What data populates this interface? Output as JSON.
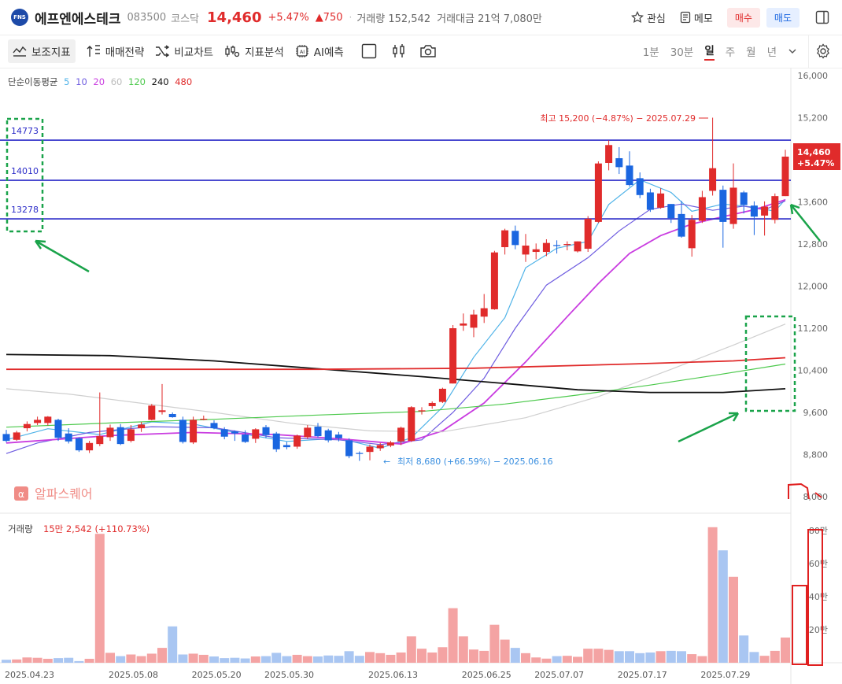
{
  "header": {
    "logo_text": "FNS",
    "stock_name": "에프엔에스테크",
    "code": "083500",
    "market": "코스닥",
    "price": "14,460",
    "change_pct": "+5.47%",
    "change_abs": "▲750",
    "sep": "·",
    "volume_label": "거래량 152,542",
    "amount_label": "거래대금 21억 7,080만",
    "watch_label": "관심",
    "memo_label": "메모",
    "buy_label": "매수",
    "sell_label": "매도"
  },
  "toolbar": {
    "indicators": "보조지표",
    "strategy": "매매전략",
    "compare": "비교차트",
    "analysis": "지표분석",
    "ai": "AI예측",
    "periods": [
      "1분",
      "30분",
      "일",
      "주",
      "월",
      "년"
    ],
    "active_period": "일"
  },
  "ma_legend": {
    "label": "단순이동평균",
    "items": [
      {
        "text": "5",
        "color": "#4fb3e8"
      },
      {
        "text": "10",
        "color": "#6e5ce0"
      },
      {
        "text": "20",
        "color": "#c93ce0"
      },
      {
        "text": "60",
        "color": "#cfcfcf"
      },
      {
        "text": "120",
        "color": "#4cc94c"
      },
      {
        "text": "240",
        "color": "#111111"
      },
      {
        "text": "480",
        "color": "#e02b2b"
      }
    ]
  },
  "watermark": "알파스퀘어",
  "chart_data": {
    "type": "candlestick",
    "y_axis_ticks": [
      "16,000",
      "15,200",
      "14,400",
      "13,600",
      "12,800",
      "12,000",
      "11,200",
      "10,400",
      "9,600",
      "8,800",
      "8,000"
    ],
    "y_axis_values": [
      16000,
      15200,
      14400,
      13600,
      12800,
      12000,
      11200,
      10400,
      9600,
      8800,
      8000
    ],
    "x_axis_labels": [
      "2025.04.23",
      "2025.05.08",
      "2025.05.20",
      "2025.05.30",
      "2025.06.13",
      "2025.06.25",
      "2025.07.07",
      "2025.07.17",
      "2025.07.29"
    ],
    "current_price_label": "14,460",
    "current_pct_label": "+5.47%",
    "current_price": 14460,
    "high_annotation": "최고 15,200 (−4.87%) − 2025.07.29",
    "low_annotation": "최저 8,680 (+66.59%) − 2025.06.16",
    "horizontal_lines": [
      {
        "label": "14773",
        "value": 14773
      },
      {
        "label": "14010",
        "value": 14010
      },
      {
        "label": "13278",
        "value": 13278
      }
    ],
    "candles": [
      {
        "o": 9190,
        "h": 9270,
        "l": 9030,
        "c": 9060
      },
      {
        "o": 9080,
        "h": 9250,
        "l": 9060,
        "c": 9220
      },
      {
        "o": 9300,
        "h": 9430,
        "l": 9240,
        "c": 9380
      },
      {
        "o": 9400,
        "h": 9520,
        "l": 9360,
        "c": 9460
      },
      {
        "o": 9400,
        "h": 9530,
        "l": 9350,
        "c": 9520
      },
      {
        "o": 9460,
        "h": 9480,
        "l": 9060,
        "c": 9120
      },
      {
        "o": 9200,
        "h": 9300,
        "l": 9010,
        "c": 9050
      },
      {
        "o": 9110,
        "h": 9130,
        "l": 8850,
        "c": 8880
      },
      {
        "o": 8880,
        "h": 9060,
        "l": 8830,
        "c": 9020
      },
      {
        "o": 9000,
        "h": 9980,
        "l": 8960,
        "c": 9150
      },
      {
        "o": 9130,
        "h": 9370,
        "l": 9060,
        "c": 9310
      },
      {
        "o": 9320,
        "h": 9380,
        "l": 8980,
        "c": 9000
      },
      {
        "o": 9060,
        "h": 9360,
        "l": 9030,
        "c": 9280
      },
      {
        "o": 9300,
        "h": 9420,
        "l": 9230,
        "c": 9370
      },
      {
        "o": 9460,
        "h": 9760,
        "l": 9450,
        "c": 9730
      },
      {
        "o": 9610,
        "h": 10140,
        "l": 9560,
        "c": 9640
      },
      {
        "o": 9570,
        "h": 9600,
        "l": 9500,
        "c": 9510
      },
      {
        "o": 9460,
        "h": 9520,
        "l": 9010,
        "c": 9040
      },
      {
        "o": 9030,
        "h": 9520,
        "l": 9000,
        "c": 9460
      },
      {
        "o": 9470,
        "h": 9540,
        "l": 9450,
        "c": 9480
      },
      {
        "o": 9400,
        "h": 9450,
        "l": 9280,
        "c": 9300
      },
      {
        "o": 9280,
        "h": 9320,
        "l": 9090,
        "c": 9140
      },
      {
        "o": 9240,
        "h": 9260,
        "l": 9060,
        "c": 9200
      },
      {
        "o": 9180,
        "h": 9260,
        "l": 9020,
        "c": 9040
      },
      {
        "o": 9100,
        "h": 9300,
        "l": 9020,
        "c": 9280
      },
      {
        "o": 9320,
        "h": 9360,
        "l": 9110,
        "c": 9170
      },
      {
        "o": 9200,
        "h": 9230,
        "l": 8850,
        "c": 8900
      },
      {
        "o": 8980,
        "h": 9040,
        "l": 8900,
        "c": 8940
      },
      {
        "o": 8950,
        "h": 9180,
        "l": 8910,
        "c": 9160
      },
      {
        "o": 9130,
        "h": 9360,
        "l": 9100,
        "c": 9310
      },
      {
        "o": 9330,
        "h": 9400,
        "l": 9120,
        "c": 9150
      },
      {
        "o": 9260,
        "h": 9290,
        "l": 9030,
        "c": 9070
      },
      {
        "o": 9180,
        "h": 9230,
        "l": 9050,
        "c": 9110
      },
      {
        "o": 9070,
        "h": 9110,
        "l": 8730,
        "c": 8770
      },
      {
        "o": 8830,
        "h": 8860,
        "l": 8680,
        "c": 8820
      },
      {
        "o": 8850,
        "h": 8990,
        "l": 8690,
        "c": 8950
      },
      {
        "o": 8920,
        "h": 9020,
        "l": 8870,
        "c": 8980
      },
      {
        "o": 8970,
        "h": 9060,
        "l": 8940,
        "c": 9030
      },
      {
        "o": 9050,
        "h": 9330,
        "l": 8980,
        "c": 9310
      },
      {
        "o": 9060,
        "h": 9720,
        "l": 9040,
        "c": 9700
      },
      {
        "o": 9620,
        "h": 9700,
        "l": 9560,
        "c": 9640
      },
      {
        "o": 9720,
        "h": 9810,
        "l": 9670,
        "c": 9780
      },
      {
        "o": 9800,
        "h": 10070,
        "l": 9780,
        "c": 10050
      },
      {
        "o": 10150,
        "h": 11260,
        "l": 10150,
        "c": 11200
      },
      {
        "o": 11250,
        "h": 11480,
        "l": 11150,
        "c": 11290
      },
      {
        "o": 11210,
        "h": 11550,
        "l": 11030,
        "c": 11460
      },
      {
        "o": 11420,
        "h": 11850,
        "l": 11300,
        "c": 11580
      },
      {
        "o": 11560,
        "h": 12670,
        "l": 11550,
        "c": 12640
      },
      {
        "o": 12740,
        "h": 13090,
        "l": 12600,
        "c": 13060
      },
      {
        "o": 13050,
        "h": 13150,
        "l": 12700,
        "c": 12780
      },
      {
        "o": 12600,
        "h": 12990,
        "l": 12460,
        "c": 12770
      },
      {
        "o": 12650,
        "h": 12810,
        "l": 12510,
        "c": 12700
      },
      {
        "o": 12650,
        "h": 12890,
        "l": 12570,
        "c": 12820
      },
      {
        "o": 12780,
        "h": 12870,
        "l": 12620,
        "c": 12770
      },
      {
        "o": 12780,
        "h": 12850,
        "l": 12680,
        "c": 12800
      },
      {
        "o": 12660,
        "h": 12850,
        "l": 12640,
        "c": 12850
      },
      {
        "o": 12710,
        "h": 13330,
        "l": 12650,
        "c": 13280
      },
      {
        "o": 13220,
        "h": 14370,
        "l": 13200,
        "c": 14330
      },
      {
        "o": 14340,
        "h": 14770,
        "l": 14200,
        "c": 14680
      },
      {
        "o": 14430,
        "h": 14640,
        "l": 14130,
        "c": 14260
      },
      {
        "o": 14290,
        "h": 14560,
        "l": 13890,
        "c": 13920
      },
      {
        "o": 14050,
        "h": 14160,
        "l": 13670,
        "c": 13730
      },
      {
        "o": 13780,
        "h": 13850,
        "l": 13410,
        "c": 13450
      },
      {
        "o": 13490,
        "h": 13860,
        "l": 13470,
        "c": 13760
      },
      {
        "o": 13560,
        "h": 13560,
        "l": 13200,
        "c": 13290
      },
      {
        "o": 13370,
        "h": 13620,
        "l": 12920,
        "c": 12940
      },
      {
        "o": 12720,
        "h": 13350,
        "l": 12560,
        "c": 13260
      },
      {
        "o": 13240,
        "h": 13810,
        "l": 13200,
        "c": 13690
      },
      {
        "o": 13810,
        "h": 15200,
        "l": 13720,
        "c": 14240
      },
      {
        "o": 13830,
        "h": 13910,
        "l": 12730,
        "c": 13220
      },
      {
        "o": 13180,
        "h": 14330,
        "l": 13090,
        "c": 13870
      },
      {
        "o": 13780,
        "h": 13810,
        "l": 13380,
        "c": 13540
      },
      {
        "o": 13530,
        "h": 13610,
        "l": 12970,
        "c": 13320
      },
      {
        "o": 13340,
        "h": 13610,
        "l": 12960,
        "c": 13510
      },
      {
        "o": 13260,
        "h": 13760,
        "l": 13190,
        "c": 13710
      },
      {
        "o": 13710,
        "h": 14590,
        "l": 13710,
        "c": 14460
      }
    ],
    "ma_series": [
      {
        "name": "5",
        "color": "#4fb3e8",
        "values": [
          [
            0,
            9080
          ],
          [
            4,
            9290
          ],
          [
            9,
            9180
          ],
          [
            14,
            9420
          ],
          [
            18,
            9380
          ],
          [
            22,
            9220
          ],
          [
            27,
            9050
          ],
          [
            32,
            9110
          ],
          [
            36,
            8920
          ],
          [
            39,
            9120
          ],
          [
            42,
            9700
          ],
          [
            45,
            10650
          ],
          [
            48,
            11400
          ],
          [
            50,
            12350
          ],
          [
            53,
            12720
          ],
          [
            56,
            12850
          ],
          [
            58,
            13550
          ],
          [
            61,
            14020
          ],
          [
            64,
            13780
          ],
          [
            66,
            13420
          ],
          [
            69,
            13560
          ],
          [
            72,
            13500
          ],
          [
            74,
            13420
          ],
          [
            75,
            13650
          ]
        ]
      },
      {
        "name": "10",
        "color": "#6e5ce0",
        "values": [
          [
            0,
            8820
          ],
          [
            3,
            9020
          ],
          [
            8,
            9220
          ],
          [
            14,
            9330
          ],
          [
            20,
            9310
          ],
          [
            26,
            9120
          ],
          [
            32,
            9080
          ],
          [
            36,
            8990
          ],
          [
            40,
            9080
          ],
          [
            43,
            9600
          ],
          [
            46,
            10250
          ],
          [
            49,
            11200
          ],
          [
            52,
            12020
          ],
          [
            56,
            12540
          ],
          [
            59,
            13050
          ],
          [
            62,
            13460
          ],
          [
            65,
            13560
          ],
          [
            68,
            13440
          ],
          [
            71,
            13520
          ],
          [
            73,
            13450
          ],
          [
            75,
            13620
          ]
        ]
      },
      {
        "name": "20",
        "color": "#c93ce0",
        "values": [
          [
            0,
            9020
          ],
          [
            10,
            9160
          ],
          [
            18,
            9220
          ],
          [
            26,
            9180
          ],
          [
            32,
            9100
          ],
          [
            38,
            9000
          ],
          [
            42,
            9250
          ],
          [
            46,
            9780
          ],
          [
            50,
            10560
          ],
          [
            54,
            11420
          ],
          [
            57,
            12050
          ],
          [
            60,
            12620
          ],
          [
            63,
            12960
          ],
          [
            66,
            13180
          ],
          [
            69,
            13320
          ],
          [
            72,
            13450
          ],
          [
            75,
            13640
          ]
        ]
      },
      {
        "name": "60",
        "color": "#cfcfcf",
        "values": [
          [
            0,
            10050
          ],
          [
            6,
            9950
          ],
          [
            12,
            9800
          ],
          [
            20,
            9600
          ],
          [
            28,
            9380
          ],
          [
            35,
            9250
          ],
          [
            42,
            9230
          ],
          [
            50,
            9500
          ],
          [
            57,
            9900
          ],
          [
            64,
            10420
          ],
          [
            70,
            10880
          ],
          [
            75,
            11280
          ]
        ]
      },
      {
        "name": "120",
        "color": "#4cc94c",
        "values": [
          [
            0,
            9320
          ],
          [
            10,
            9400
          ],
          [
            20,
            9470
          ],
          [
            30,
            9550
          ],
          [
            40,
            9620
          ],
          [
            48,
            9760
          ],
          [
            55,
            9930
          ],
          [
            62,
            10120
          ],
          [
            68,
            10300
          ],
          [
            75,
            10520
          ]
        ]
      },
      {
        "name": "240",
        "color": "#111111",
        "values": [
          [
            0,
            10700
          ],
          [
            10,
            10680
          ],
          [
            20,
            10580
          ],
          [
            30,
            10430
          ],
          [
            40,
            10280
          ],
          [
            48,
            10150
          ],
          [
            55,
            10030
          ],
          [
            62,
            9980
          ],
          [
            69,
            9980
          ],
          [
            75,
            10050
          ]
        ]
      },
      {
        "name": "480",
        "color": "#e02b2b",
        "values": [
          [
            0,
            10420
          ],
          [
            15,
            10420
          ],
          [
            30,
            10420
          ],
          [
            45,
            10440
          ],
          [
            60,
            10520
          ],
          [
            70,
            10580
          ],
          [
            75,
            10640
          ]
        ]
      }
    ],
    "volume": {
      "label": "거래량",
      "value_label": "15만 2,542 (+110.73%)",
      "y_axis_ticks": [
        "80만",
        "60만",
        "40만",
        "20만"
      ],
      "y_axis_values": [
        800000,
        600000,
        400000,
        200000
      ],
      "values": [
        18000,
        20000,
        32000,
        30000,
        24000,
        28000,
        30000,
        10000,
        24000,
        780000,
        60000,
        40000,
        50000,
        40000,
        55000,
        90000,
        220000,
        50000,
        55000,
        48000,
        38000,
        28000,
        30000,
        26000,
        38000,
        40000,
        60000,
        40000,
        48000,
        40000,
        38000,
        44000,
        42000,
        70000,
        42000,
        65000,
        58000,
        48000,
        62000,
        160000,
        85000,
        62000,
        94000,
        330000,
        160000,
        80000,
        72000,
        230000,
        140000,
        90000,
        58000,
        32000,
        25000,
        40000,
        42000,
        36000,
        85000,
        85000,
        78000,
        70000,
        70000,
        58000,
        62000,
        70000,
        72000,
        70000,
        52000,
        40000,
        820000,
        680000,
        520000,
        165000,
        65000,
        42000,
        72000,
        152542
      ]
    }
  }
}
